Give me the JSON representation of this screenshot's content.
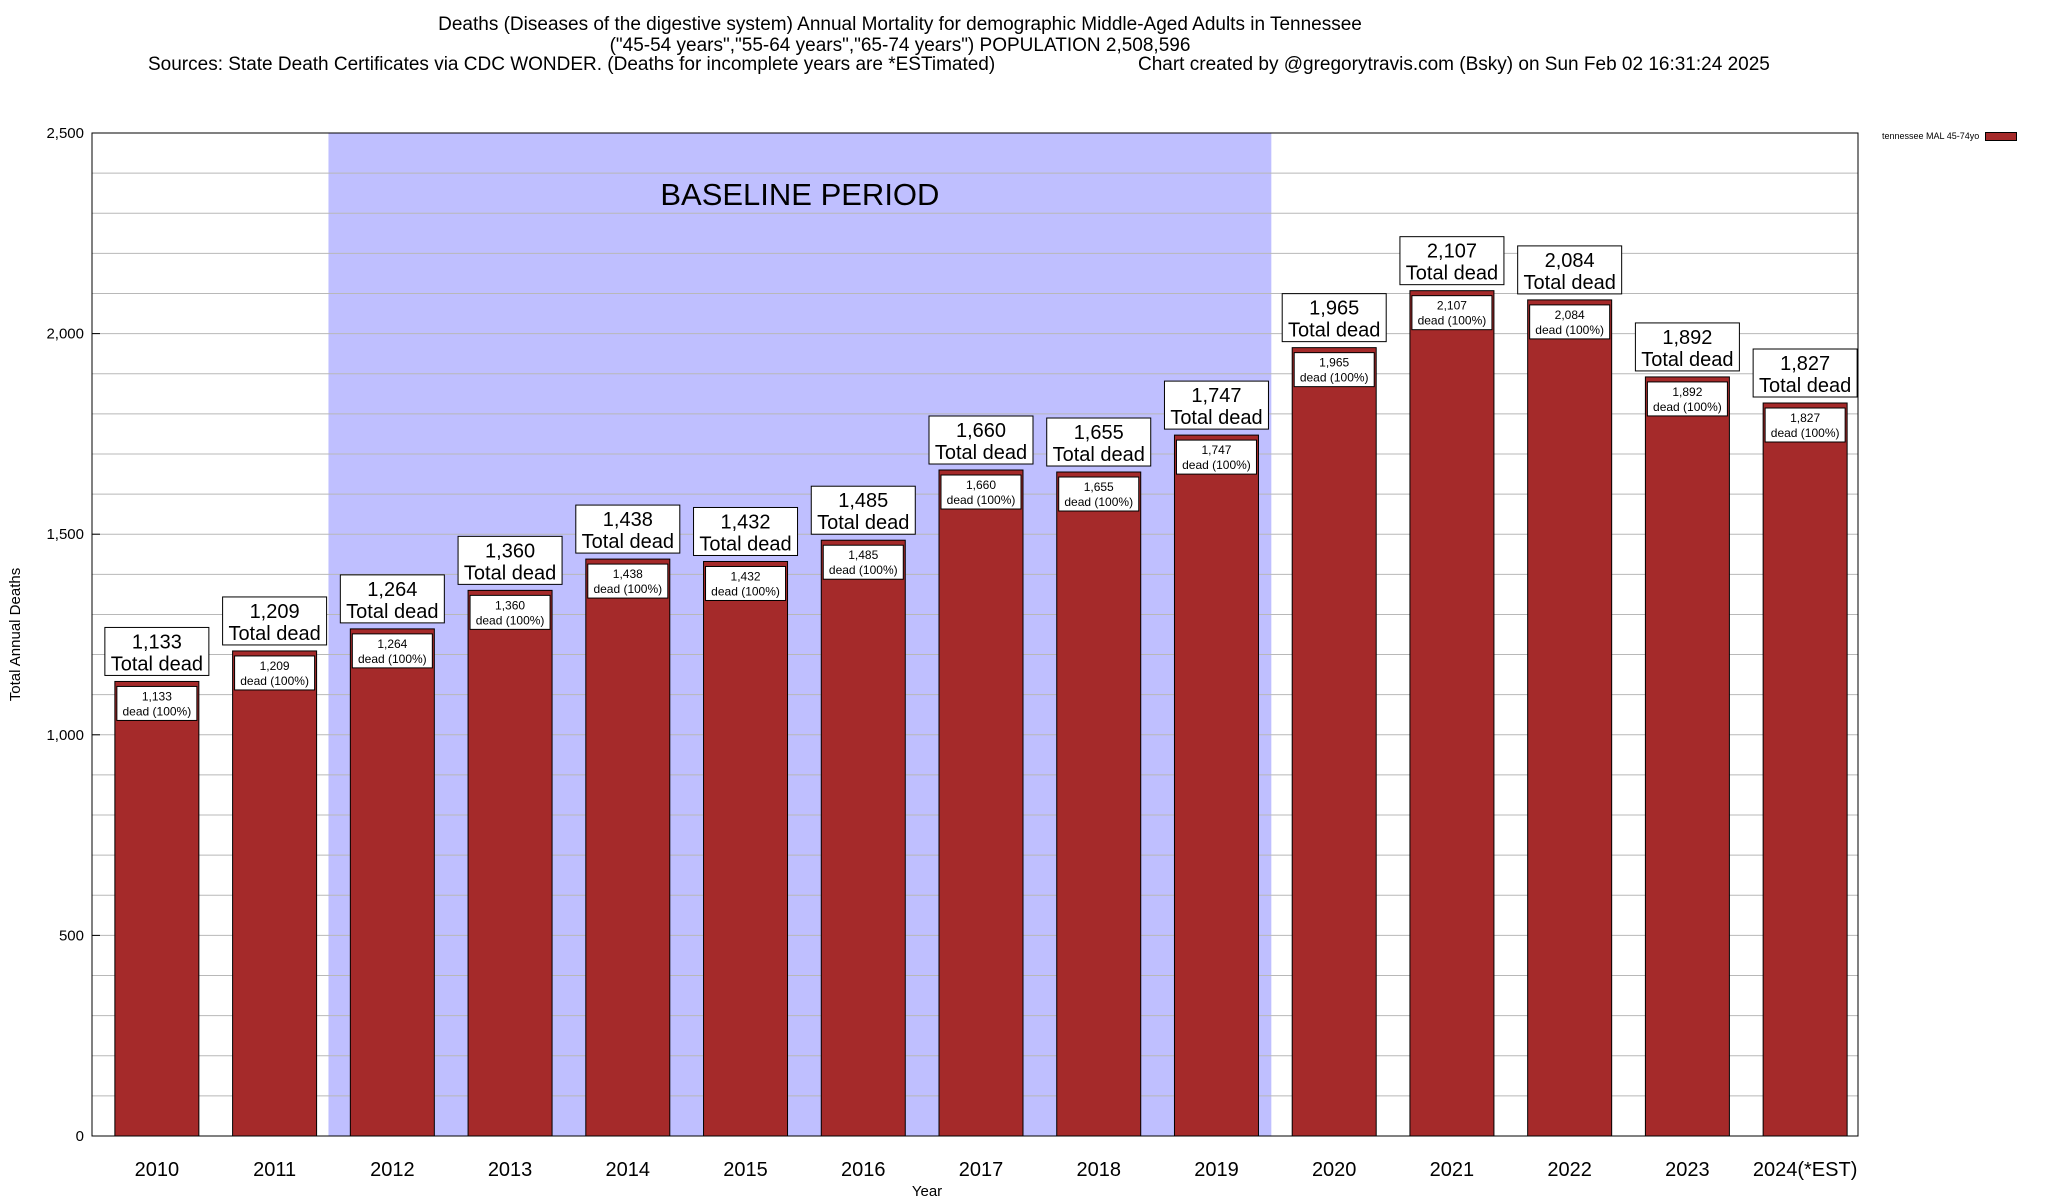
{
  "header": {
    "title_line1": "Deaths (Diseases of the digestive system) Annual Mortality for demographic Middle-Aged Adults in Tennessee",
    "title_line2": "(\"45-54 years\",\"55-64 years\",\"65-74 years\") POPULATION 2,508,596",
    "sources": "Sources: State Death Certificates via CDC WONDER. (Deaths for incomplete years are *ESTimated)",
    "credit": "Chart created by @gregorytravis.com (Bsky) on Sun Feb 02 16:31:24 2025"
  },
  "legend": {
    "label": "tennessee MAL 45-74yo"
  },
  "colors": {
    "bar": "#a52a2a",
    "baseline_band": "#bfbfff"
  },
  "chart_data": {
    "type": "bar",
    "categories": [
      "2010",
      "2011",
      "2012",
      "2013",
      "2014",
      "2015",
      "2016",
      "2017",
      "2018",
      "2019",
      "2020",
      "2021",
      "2022",
      "2023",
      "2024(*EST)"
    ],
    "series": [
      {
        "name": "tennessee MAL 45-74yo",
        "values": [
          1133,
          1209,
          1264,
          1360,
          1438,
          1432,
          1485,
          1660,
          1655,
          1747,
          1965,
          2107,
          2084,
          1892,
          1827
        ]
      }
    ],
    "value_labels": [
      "1,133",
      "1,209",
      "1,264",
      "1,360",
      "1,438",
      "1,432",
      "1,485",
      "1,660",
      "1,655",
      "1,747",
      "1,965",
      "2,107",
      "2,084",
      "1,892",
      "1,827"
    ],
    "top_label_suffix": "Total dead",
    "inner_label_suffix": "dead (100%)",
    "xlabel": "Year",
    "ylabel": "Total Annual Deaths",
    "ylim": [
      0,
      2500
    ],
    "yticks": [
      0,
      500,
      1000,
      1500,
      2000,
      2500
    ],
    "ytick_labels": [
      "0",
      "500",
      "1,000",
      "1,500",
      "2,000",
      "2,500"
    ],
    "grid": true,
    "legend_position": "top-right",
    "baseline_period": {
      "label": "BASELINE PERIOD",
      "from": "2012",
      "to": "2019"
    }
  }
}
